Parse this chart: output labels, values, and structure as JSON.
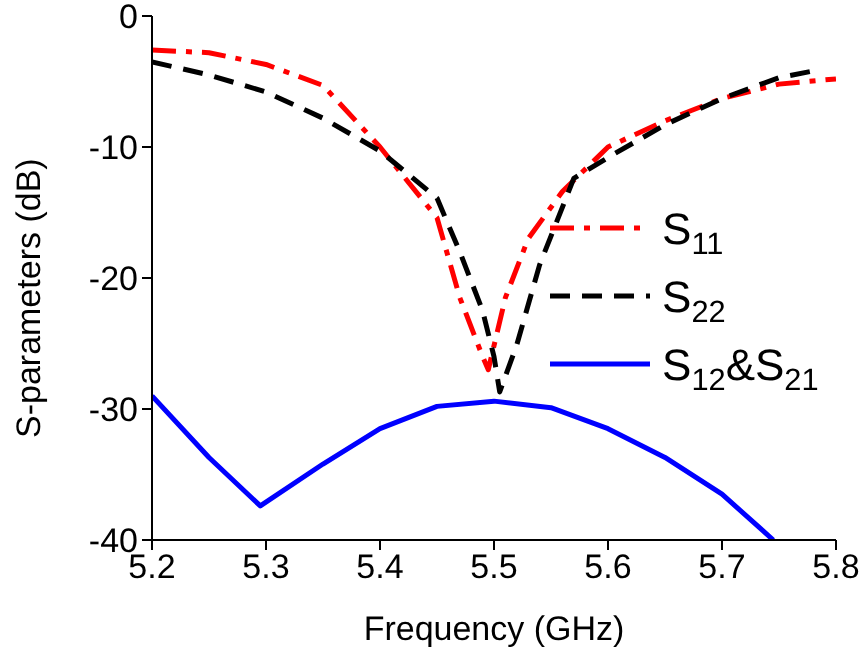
{
  "chart_data": {
    "type": "line",
    "xlabel": "Frequency (GHz)",
    "ylabel": "S-parameters (dB)",
    "xlim": [
      5.2,
      5.8
    ],
    "xticks": [
      5.2,
      5.3,
      5.4,
      5.5,
      5.6,
      5.7,
      5.8
    ],
    "ylim": [
      -40,
      0
    ],
    "yticks": [
      -40,
      -30,
      -20,
      -10,
      0
    ],
    "grid": false,
    "legend": "right",
    "marker": "none",
    "series": [
      {
        "name": "S$_{11}$",
        "color": "#ff0000",
        "line_style": "dashdot",
        "x": [
          5.2,
          5.25,
          5.3,
          5.35,
          5.4,
          5.45,
          5.47,
          5.49,
          5.495,
          5.51,
          5.53,
          5.56,
          5.6,
          5.65,
          5.7,
          5.75,
          5.8
        ],
        "values": [
          -2.6,
          -2.8,
          -3.7,
          -5.3,
          -10,
          -15.4,
          -21.5,
          -26,
          -27,
          -21.5,
          -17,
          -13.4,
          -10,
          -8,
          -6.3,
          -5.2,
          -4.8
        ]
      },
      {
        "name": "S$_{22}$",
        "color": "#000000",
        "line_style": "dashed",
        "x": [
          5.2,
          5.25,
          5.3,
          5.35,
          5.4,
          5.45,
          5.47,
          5.49,
          5.5,
          5.505,
          5.52,
          5.54,
          5.57,
          5.6,
          5.65,
          5.7,
          5.75,
          5.78
        ],
        "values": [
          -3.5,
          -4.5,
          -5.8,
          -7.8,
          -10.3,
          -13.9,
          -18,
          -22.5,
          -26,
          -28.7,
          -25.1,
          -19,
          -12.4,
          -10.8,
          -8.3,
          -6.3,
          -4.7,
          -4.2
        ]
      },
      {
        "name": "S$_{12}$&S$_{21}$",
        "color": "#0000ff",
        "line_style": "solid",
        "x": [
          5.2,
          5.25,
          5.295,
          5.35,
          5.4,
          5.45,
          5.5,
          5.55,
          5.6,
          5.65,
          5.7,
          5.745
        ],
        "values": [
          -29,
          -33.7,
          -37.4,
          -34.2,
          -31.5,
          -29.8,
          -29.4,
          -29.9,
          -31.5,
          -33.7,
          -36.5,
          -40
        ]
      }
    ]
  }
}
